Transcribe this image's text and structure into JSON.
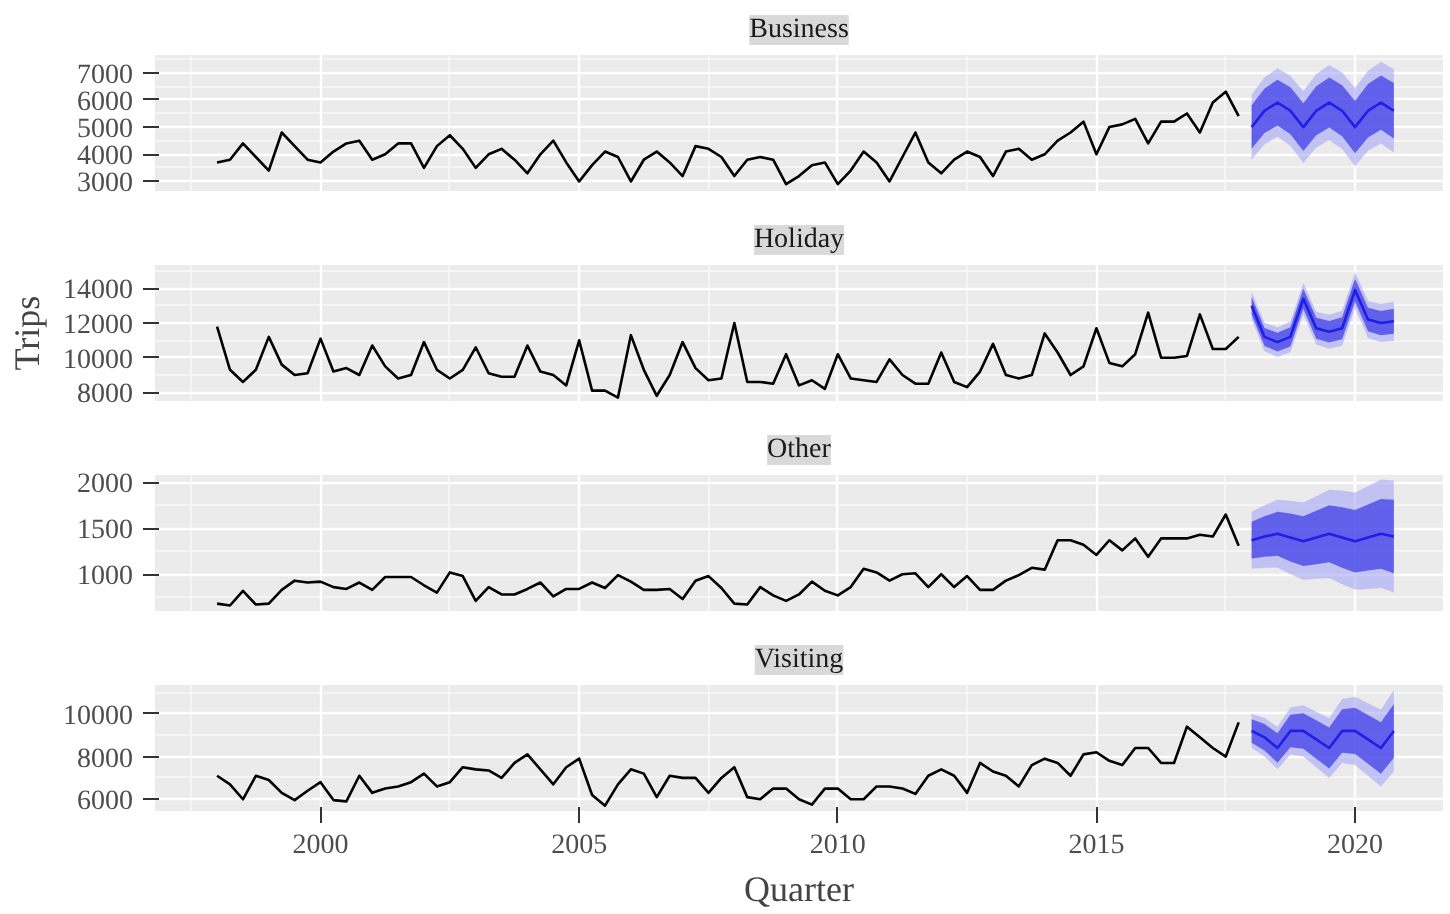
{
  "chart_data": [
    {
      "type": "line",
      "title": "Business",
      "xlim": [
        1996.8,
        2021.7
      ],
      "xticks": [
        2000,
        2005,
        2010,
        2015,
        2020
      ],
      "ylim": [
        2650,
        7650
      ],
      "yticks": [
        3000,
        4000,
        5000,
        6000,
        7000
      ],
      "grid": true,
      "tick_labels": "y",
      "x": [
        1998,
        1998.25,
        1998.5,
        1998.75,
        1999,
        1999.25,
        1999.5,
        1999.75,
        2000,
        2000.25,
        2000.5,
        2000.75,
        2001,
        2001.25,
        2001.5,
        2001.75,
        2002,
        2002.25,
        2002.5,
        2002.75,
        2003,
        2003.25,
        2003.5,
        2003.75,
        2004,
        2004.25,
        2004.5,
        2004.75,
        2005,
        2005.25,
        2005.5,
        2005.75,
        2006,
        2006.25,
        2006.5,
        2006.75,
        2007,
        2007.25,
        2007.5,
        2007.75,
        2008,
        2008.25,
        2008.5,
        2008.75,
        2009,
        2009.25,
        2009.5,
        2009.75,
        2010,
        2010.25,
        2010.5,
        2010.75,
        2011,
        2011.25,
        2011.5,
        2011.75,
        2012,
        2012.25,
        2012.5,
        2012.75,
        2013,
        2013.25,
        2013.5,
        2013.75,
        2014,
        2014.25,
        2014.5,
        2014.75,
        2015,
        2015.25,
        2015.5,
        2015.75,
        2016,
        2016.25,
        2016.5,
        2016.75,
        2017,
        2017.25,
        2017.5,
        2017.75
      ],
      "series": [
        {
          "color": "#000000",
          "values": [
            3700,
            3800,
            4400,
            3900,
            3400,
            4800,
            4300,
            3800,
            3700,
            4100,
            4400,
            4500,
            3800,
            4000,
            4400,
            4400,
            3500,
            4300,
            4700,
            4200,
            3500,
            4000,
            4200,
            3800,
            3300,
            4000,
            4500,
            3700,
            3000,
            3600,
            4100,
            3900,
            3000,
            3800,
            4100,
            3700,
            3200,
            4300,
            4200,
            3900,
            3200,
            3800,
            3900,
            3800,
            2900,
            3200,
            3600,
            3700,
            2900,
            3400,
            4100,
            3700,
            3000,
            3900,
            4800,
            3700,
            3300,
            3800,
            4100,
            3900,
            3200,
            4100,
            4200,
            3800,
            4000,
            4500,
            4800,
            5200,
            4000,
            5000,
            5100,
            5300,
            4400,
            5200,
            5200,
            5500,
            4800,
            5900,
            6300,
            5400
          ]
        },
        {
          "color": "#a6a6f7",
          "x": [
            2018,
            2018.25,
            2018.5,
            2018.75,
            2019,
            2019.25,
            2019.5,
            2019.75,
            2020,
            2020.25,
            2020.5,
            2020.75
          ],
          "values": [
            null,
            null,
            null,
            null,
            null,
            null,
            null,
            null,
            null,
            null,
            null,
            null
          ],
          "lower": [
            3800,
            4370,
            4640,
            4310,
            3680,
            4250,
            4520,
            4190,
            3560,
            4130,
            4400,
            4070
          ],
          "upper": [
            6200,
            6830,
            7160,
            6890,
            6320,
            6950,
            7280,
            7010,
            6440,
            7070,
            7400,
            7130
          ]
        },
        {
          "color": "#1e1ee6",
          "x": [
            2018,
            2018.25,
            2018.5,
            2018.75,
            2019,
            2019.25,
            2019.5,
            2019.75,
            2020,
            2020.25,
            2020.5,
            2020.75
          ],
          "values": [
            5000,
            5600,
            5900,
            5600,
            5000,
            5600,
            5900,
            5600,
            5000,
            5600,
            5900,
            5600
          ],
          "lower": [
            4200,
            4780,
            5060,
            4740,
            4120,
            4700,
            4980,
            4660,
            4040,
            4620,
            4900,
            4580
          ],
          "upper": [
            5800,
            6420,
            6740,
            6460,
            5880,
            6500,
            6820,
            6540,
            5960,
            6580,
            6900,
            6620
          ]
        }
      ]
    },
    {
      "type": "line",
      "title": "Holiday",
      "ylabel": "Trips",
      "xlim": [
        1996.8,
        2021.7
      ],
      "xticks": [
        2000,
        2005,
        2010,
        2015,
        2020
      ],
      "ylim": [
        7500,
        15350
      ],
      "yticks": [
        8000,
        10000,
        12000,
        14000
      ],
      "grid": true,
      "tick_labels": "y",
      "x": [
        1998,
        1998.25,
        1998.5,
        1998.75,
        1999,
        1999.25,
        1999.5,
        1999.75,
        2000,
        2000.25,
        2000.5,
        2000.75,
        2001,
        2001.25,
        2001.5,
        2001.75,
        2002,
        2002.25,
        2002.5,
        2002.75,
        2003,
        2003.25,
        2003.5,
        2003.75,
        2004,
        2004.25,
        2004.5,
        2004.75,
        2005,
        2005.25,
        2005.5,
        2005.75,
        2006,
        2006.25,
        2006.5,
        2006.75,
        2007,
        2007.25,
        2007.5,
        2007.75,
        2008,
        2008.25,
        2008.5,
        2008.75,
        2009,
        2009.25,
        2009.5,
        2009.75,
        2010,
        2010.25,
        2010.5,
        2010.75,
        2011,
        2011.25,
        2011.5,
        2011.75,
        2012,
        2012.25,
        2012.5,
        2012.75,
        2013,
        2013.25,
        2013.5,
        2013.75,
        2014,
        2014.25,
        2014.5,
        2014.75,
        2015,
        2015.25,
        2015.5,
        2015.75,
        2016,
        2016.25,
        2016.5,
        2016.75,
        2017,
        2017.25,
        2017.5,
        2017.75
      ],
      "series": [
        {
          "color": "#000000",
          "values": [
            11800,
            9300,
            8600,
            9300,
            11200,
            9600,
            9000,
            9100,
            11100,
            9200,
            9400,
            9000,
            10700,
            9500,
            8800,
            9000,
            10900,
            9300,
            8800,
            9300,
            10600,
            9100,
            8900,
            8900,
            10700,
            9200,
            9000,
            8400,
            11000,
            8100,
            8100,
            7700,
            11300,
            9300,
            7800,
            9000,
            10900,
            9400,
            8700,
            8800,
            12000,
            8600,
            8600,
            8500,
            10200,
            8400,
            8700,
            8200,
            10200,
            8800,
            8700,
            8600,
            9900,
            9000,
            8500,
            8500,
            10300,
            8600,
            8300,
            9200,
            10800,
            9000,
            8800,
            9000,
            11400,
            10300,
            9000,
            9500,
            11700,
            9700,
            9500,
            10200,
            12600,
            10000,
            10000,
            10100,
            12500,
            10500,
            10500,
            11200
          ]
        },
        {
          "color": "#a6a6f7",
          "x": [
            2018,
            2018.25,
            2018.5,
            2018.75,
            2019,
            2019.25,
            2019.5,
            2019.75,
            2020,
            2020.25,
            2020.5,
            2020.75
          ],
          "values": [
            null,
            null,
            null,
            null,
            null,
            null,
            null,
            null,
            null,
            null,
            null,
            null
          ],
          "lower": [
            12200,
            10370,
            10040,
            10310,
            12480,
            10750,
            10520,
            10690,
            12860,
            11130,
            10900,
            10970
          ],
          "upper": [
            13800,
            12030,
            11760,
            12090,
            14320,
            12650,
            12480,
            12710,
            14940,
            13270,
            13100,
            13230
          ]
        },
        {
          "color": "#1e1ee6",
          "x": [
            2018,
            2018.25,
            2018.5,
            2018.75,
            2019,
            2019.25,
            2019.5,
            2019.75,
            2020,
            2020.25,
            2020.5,
            2020.75
          ],
          "values": [
            13000,
            11200,
            10900,
            11200,
            13400,
            11700,
            11500,
            11700,
            13900,
            12200,
            12000,
            12100
          ],
          "lower": [
            12500,
            10680,
            10360,
            10640,
            12820,
            11100,
            10880,
            11060,
            13240,
            11520,
            11300,
            11380
          ],
          "upper": [
            13500,
            11720,
            11440,
            11760,
            13980,
            12300,
            12120,
            12340,
            14560,
            12880,
            12700,
            12820
          ]
        }
      ]
    },
    {
      "type": "line",
      "title": "Other",
      "xlim": [
        1996.8,
        2021.7
      ],
      "xticks": [
        2000,
        2005,
        2010,
        2015,
        2020
      ],
      "ylim": [
        600,
        2080
      ],
      "yticks": [
        1000,
        1500,
        2000
      ],
      "grid": true,
      "tick_labels": "y",
      "x": [
        1998,
        1998.25,
        1998.5,
        1998.75,
        1999,
        1999.25,
        1999.5,
        1999.75,
        2000,
        2000.25,
        2000.5,
        2000.75,
        2001,
        2001.25,
        2001.5,
        2001.75,
        2002,
        2002.25,
        2002.5,
        2002.75,
        2003,
        2003.25,
        2003.5,
        2003.75,
        2004,
        2004.25,
        2004.5,
        2004.75,
        2005,
        2005.25,
        2005.5,
        2005.75,
        2006,
        2006.25,
        2006.5,
        2006.75,
        2007,
        2007.25,
        2007.5,
        2007.75,
        2008,
        2008.25,
        2008.5,
        2008.75,
        2009,
        2009.25,
        2009.5,
        2009.75,
        2010,
        2010.25,
        2010.5,
        2010.75,
        2011,
        2011.25,
        2011.5,
        2011.75,
        2012,
        2012.25,
        2012.5,
        2012.75,
        2013,
        2013.25,
        2013.5,
        2013.75,
        2014,
        2014.25,
        2014.5,
        2014.75,
        2015,
        2015.25,
        2015.5,
        2015.75,
        2016,
        2016.25,
        2016.5,
        2016.75,
        2017,
        2017.25,
        2017.5,
        2017.75
      ],
      "series": [
        {
          "color": "#000000",
          "values": [
            680,
            660,
            820,
            670,
            680,
            830,
            930,
            910,
            920,
            860,
            840,
            910,
            830,
            970,
            970,
            970,
            880,
            800,
            1020,
            980,
            710,
            860,
            780,
            780,
            840,
            910,
            760,
            840,
            840,
            910,
            850,
            990,
            920,
            830,
            830,
            840,
            730,
            930,
            980,
            850,
            680,
            670,
            860,
            770,
            710,
            780,
            920,
            820,
            770,
            860,
            1060,
            1020,
            930,
            1000,
            1010,
            860,
            1000,
            860,
            980,
            830,
            830,
            930,
            990,
            1070,
            1050,
            1370,
            1370,
            1320,
            1210,
            1370,
            1260,
            1390,
            1190,
            1390,
            1390,
            1390,
            1430,
            1410,
            1650,
            1310
          ]
        },
        {
          "color": "#a6a6f7",
          "x": [
            2018,
            2018.25,
            2018.5,
            2018.75,
            2019,
            2019.25,
            2019.5,
            2019.75,
            2020,
            2020.25,
            2020.5,
            2020.75
          ],
          "values": [
            null,
            null,
            null,
            null,
            null,
            null,
            null,
            null,
            null,
            null,
            null,
            null
          ],
          "lower": [
            1060,
            1070,
            1070,
            1000,
            940,
            950,
            960,
            890,
            830,
            840,
            850,
            800
          ],
          "upper": [
            1680,
            1750,
            1810,
            1800,
            1780,
            1850,
            1920,
            1910,
            1890,
            1960,
            2030,
            2020
          ]
        },
        {
          "color": "#1e1ee6",
          "x": [
            2018,
            2018.25,
            2018.5,
            2018.75,
            2019,
            2019.25,
            2019.5,
            2019.75,
            2020,
            2020.25,
            2020.5,
            2020.75
          ],
          "values": [
            1370,
            1410,
            1440,
            1400,
            1360,
            1400,
            1440,
            1400,
            1360,
            1400,
            1440,
            1410
          ],
          "lower": [
            1170,
            1190,
            1200,
            1140,
            1090,
            1110,
            1130,
            1070,
            1020,
            1040,
            1060,
            1010
          ],
          "upper": [
            1570,
            1630,
            1680,
            1660,
            1630,
            1690,
            1750,
            1730,
            1700,
            1760,
            1820,
            1810
          ]
        }
      ]
    },
    {
      "type": "line",
      "title": "Visiting",
      "xlabel": "Quarter",
      "xlim": [
        1996.8,
        2021.7
      ],
      "xticks": [
        2000,
        2005,
        2010,
        2015,
        2020
      ],
      "ylim": [
        5450,
        11350
      ],
      "yticks": [
        6000,
        8000,
        10000
      ],
      "grid": true,
      "x": [
        1998,
        1998.25,
        1998.5,
        1998.75,
        1999,
        1999.25,
        1999.5,
        1999.75,
        2000,
        2000.25,
        2000.5,
        2000.75,
        2001,
        2001.25,
        2001.5,
        2001.75,
        2002,
        2002.25,
        2002.5,
        2002.75,
        2003,
        2003.25,
        2003.5,
        2003.75,
        2004,
        2004.25,
        2004.5,
        2004.75,
        2005,
        2005.25,
        2005.5,
        2005.75,
        2006,
        2006.25,
        2006.5,
        2006.75,
        2007,
        2007.25,
        2007.5,
        2007.75,
        2008,
        2008.25,
        2008.5,
        2008.75,
        2009,
        2009.25,
        2009.5,
        2009.75,
        2010,
        2010.25,
        2010.5,
        2010.75,
        2011,
        2011.25,
        2011.5,
        2011.75,
        2012,
        2012.25,
        2012.5,
        2012.75,
        2013,
        2013.25,
        2013.5,
        2013.75,
        2014,
        2014.25,
        2014.5,
        2014.75,
        2015,
        2015.25,
        2015.5,
        2015.75,
        2016,
        2016.25,
        2016.5,
        2016.75,
        2017,
        2017.25,
        2017.5,
        2017.75
      ],
      "series": [
        {
          "color": "#000000",
          "values": [
            7100,
            6700,
            6000,
            7100,
            6900,
            6300,
            5960,
            6400,
            6800,
            5960,
            5900,
            7100,
            6300,
            6500,
            6600,
            6800,
            7200,
            6600,
            6800,
            7500,
            7400,
            7350,
            7000,
            7700,
            8100,
            7400,
            6700,
            7500,
            7900,
            6200,
            5700,
            6700,
            7400,
            7200,
            6100,
            7100,
            7000,
            7000,
            6300,
            7000,
            7500,
            6100,
            6000,
            6500,
            6500,
            6000,
            5750,
            6500,
            6500,
            6000,
            6000,
            6600,
            6600,
            6500,
            6250,
            7100,
            7400,
            7100,
            6300,
            7700,
            7300,
            7100,
            6600,
            7600,
            7900,
            7700,
            7100,
            8100,
            8200,
            7800,
            7600,
            8400,
            8400,
            7700,
            7700,
            9400,
            8900,
            8400,
            8000,
            9600
          ]
        },
        {
          "color": "#a6a6f7",
          "x": [
            2018,
            2018.25,
            2018.5,
            2018.75,
            2019,
            2019.25,
            2019.5,
            2019.75,
            2020,
            2020.25,
            2020.5,
            2020.75
          ],
          "values": [
            null,
            null,
            null,
            null,
            null,
            null,
            null,
            null,
            null,
            null,
            null,
            null
          ],
          "lower": [
            8400,
            8000,
            7400,
            8100,
            8000,
            7500,
            7000,
            7700,
            7600,
            7100,
            6600,
            7300
          ],
          "upper": [
            10000,
            9800,
            9400,
            10300,
            10400,
            10100,
            9800,
            10700,
            10800,
            10500,
            10200,
            11100
          ]
        },
        {
          "color": "#1e1ee6",
          "x": [
            2018,
            2018.25,
            2018.5,
            2018.75,
            2019,
            2019.25,
            2019.5,
            2019.75,
            2020,
            2020.25,
            2020.5,
            2020.75
          ],
          "values": [
            9200,
            8900,
            8400,
            9200,
            9200,
            8800,
            8400,
            9200,
            9200,
            8800,
            8400,
            9200
          ],
          "lower": [
            8650,
            8280,
            7710,
            8440,
            8370,
            7900,
            7440,
            8180,
            8120,
            7660,
            7200,
            7940
          ],
          "upper": [
            9750,
            9520,
            9090,
            9960,
            10030,
            9700,
            9360,
            10220,
            10280,
            9940,
            9600,
            10460
          ]
        }
      ]
    }
  ]
}
